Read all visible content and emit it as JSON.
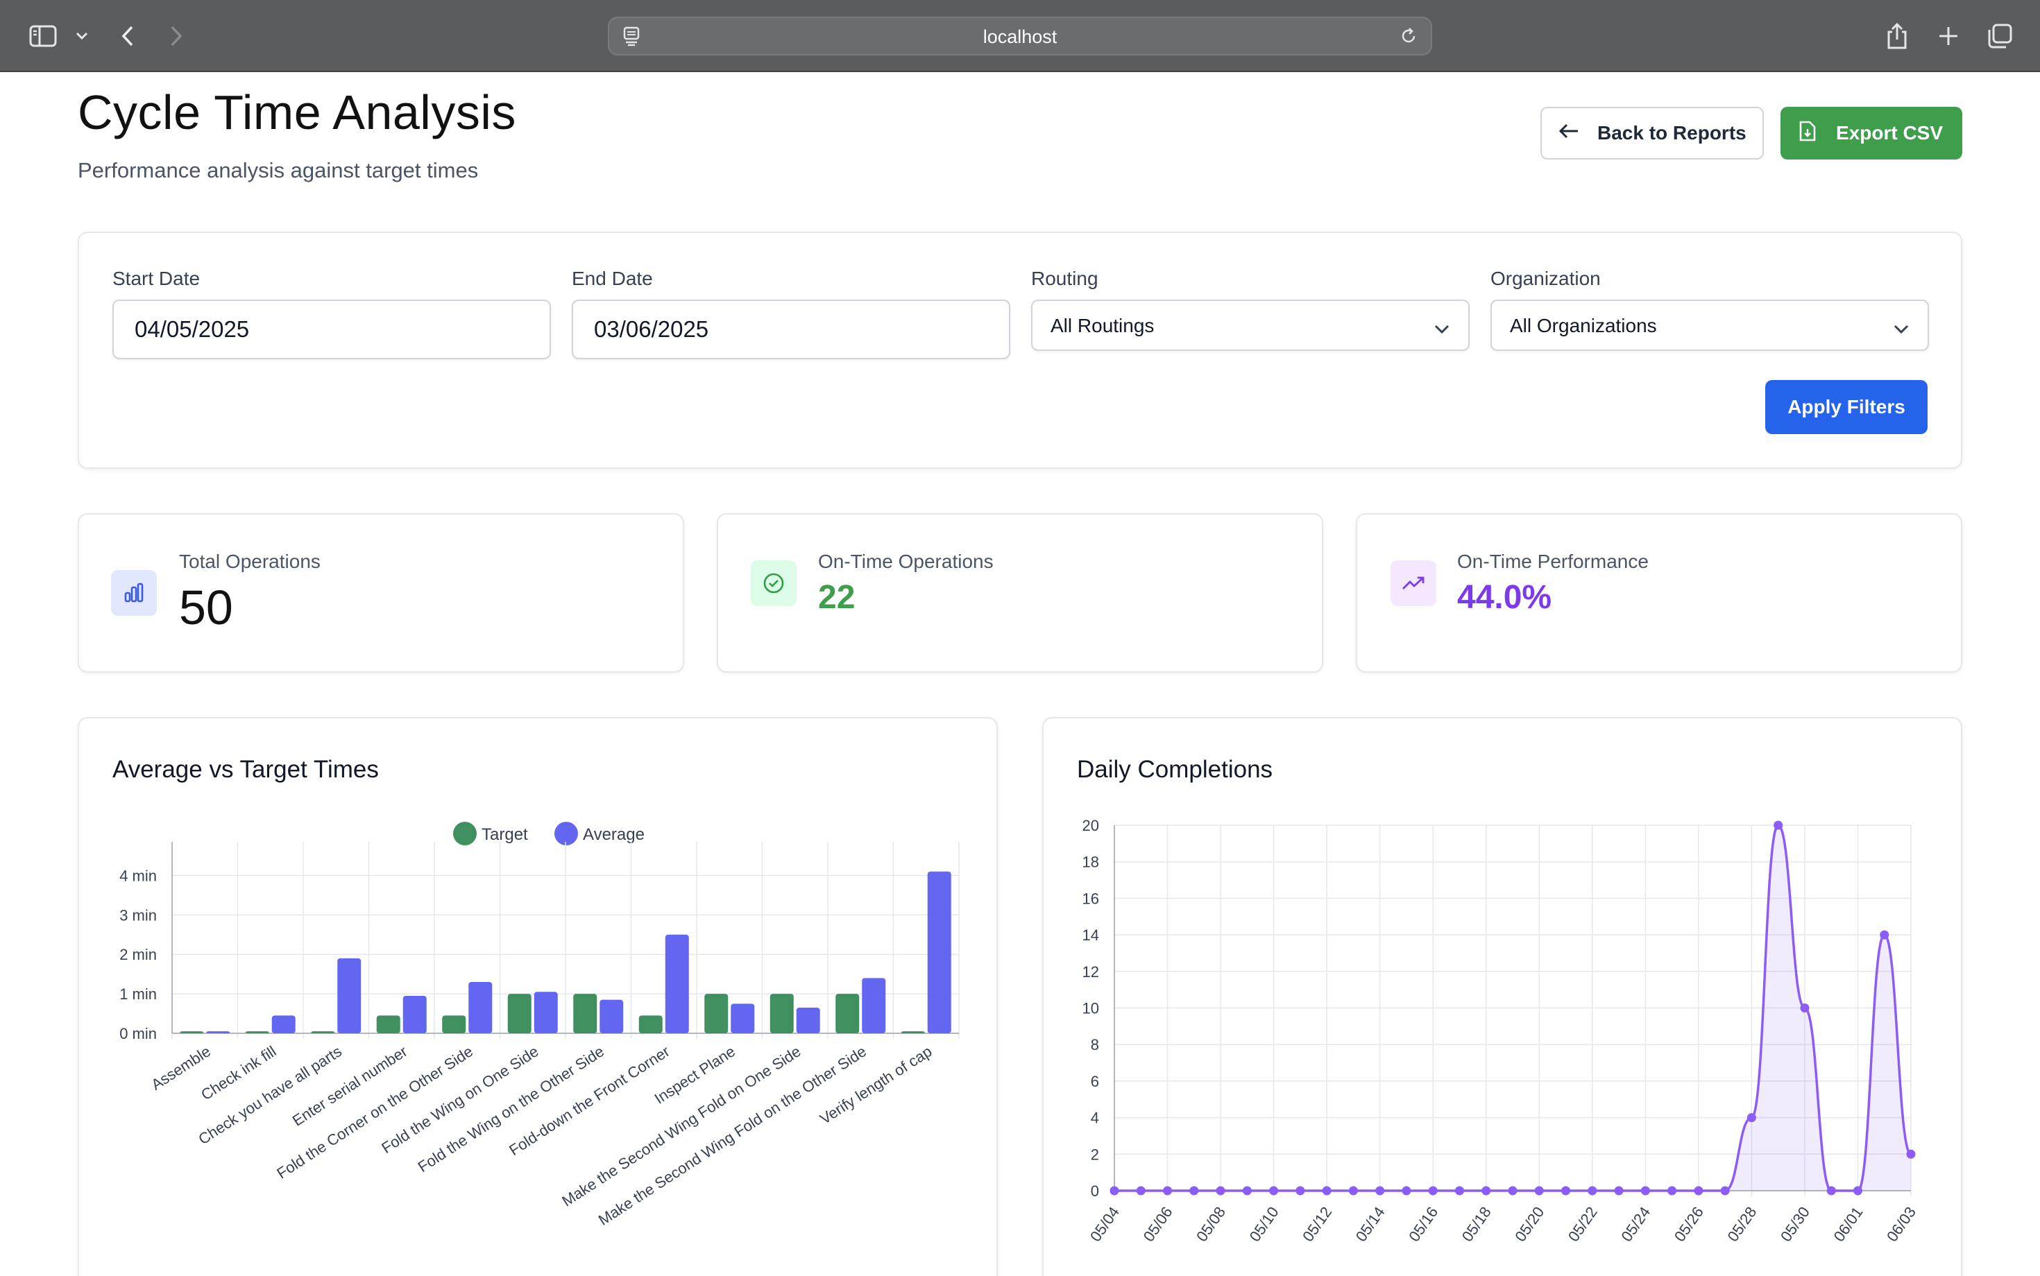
{
  "browser": {
    "url": "localhost"
  },
  "header": {
    "title": "Cycle Time Analysis",
    "subtitle": "Performance analysis against target times",
    "back_label": "Back to Reports",
    "export_label": "Export CSV"
  },
  "filters": {
    "start_label": "Start Date",
    "start_value": "04/05/2025",
    "end_label": "End Date",
    "end_value": "03/06/2025",
    "routing_label": "Routing",
    "routing_value": "All Routings",
    "org_label": "Organization",
    "org_value": "All Organizations",
    "apply_label": "Apply Filters"
  },
  "stats": {
    "total_label": "Total Operations",
    "total_value": "50",
    "ontime_label": "On-Time Operations",
    "ontime_value": "22",
    "perf_label": "On-Time Performance",
    "perf_value": "44.0%"
  },
  "colors": {
    "target": "#3f8f5f",
    "average": "#6366f1",
    "daily_line": "#8b5cf6",
    "ontime_green": "#3f9e4c",
    "perf_purple": "#7c3aed",
    "apply_blue": "#2563eb"
  },
  "chart_data": [
    {
      "type": "bar",
      "title": "Average vs Target Times",
      "categories": [
        "Assemble",
        "Check ink fill",
        "Check you have all parts",
        "Enter serial number",
        "Fold the Corner on the Other Side",
        "Fold the Wing on One Side",
        "Fold the Wing on the Other Side",
        "Fold-down the Front Corner",
        "Inspect Plane",
        "Make the Second Wing Fold on One Side",
        "Make the Second Wing Fold on the Other Side",
        "Verify length of cap"
      ],
      "series": [
        {
          "name": "Target",
          "values": [
            0.05,
            0.05,
            0.05,
            0.45,
            0.45,
            1.0,
            1.0,
            0.45,
            1.0,
            1.0,
            1.0,
            0.05
          ]
        },
        {
          "name": "Average",
          "values": [
            0.05,
            0.45,
            1.9,
            0.95,
            1.3,
            1.05,
            0.85,
            2.5,
            0.75,
            0.65,
            1.4,
            4.1
          ]
        }
      ],
      "y_ticks": [
        "0 min",
        "1 min",
        "2 min",
        "3 min",
        "4 min"
      ],
      "ylim": [
        0,
        4.5
      ],
      "legend": "top-center",
      "grid": true
    },
    {
      "type": "area",
      "title": "Daily Completions",
      "x": [
        "05/04",
        "05/05",
        "05/06",
        "05/07",
        "05/08",
        "05/09",
        "05/10",
        "05/11",
        "05/12",
        "05/13",
        "05/14",
        "05/15",
        "05/16",
        "05/17",
        "05/18",
        "05/19",
        "05/20",
        "05/21",
        "05/22",
        "05/23",
        "05/24",
        "05/25",
        "05/26",
        "05/27",
        "05/28",
        "05/29",
        "05/30",
        "05/31",
        "06/01",
        "06/02",
        "06/03"
      ],
      "values": [
        0,
        0,
        0,
        0,
        0,
        0,
        0,
        0,
        0,
        0,
        0,
        0,
        0,
        0,
        0,
        0,
        0,
        0,
        0,
        0,
        0,
        0,
        0,
        0,
        4,
        20,
        10,
        0,
        0,
        14,
        2
      ],
      "x_tick_labels": [
        "05/04",
        "05/06",
        "05/08",
        "05/10",
        "05/12",
        "05/14",
        "05/16",
        "05/18",
        "05/20",
        "05/22",
        "05/24",
        "05/26",
        "05/28",
        "05/30",
        "06/01",
        "06/03"
      ],
      "y_ticks": [
        "0",
        "2",
        "4",
        "6",
        "8",
        "10",
        "12",
        "14",
        "16",
        "18",
        "20"
      ],
      "ylim": [
        0,
        20
      ],
      "grid": true
    }
  ]
}
